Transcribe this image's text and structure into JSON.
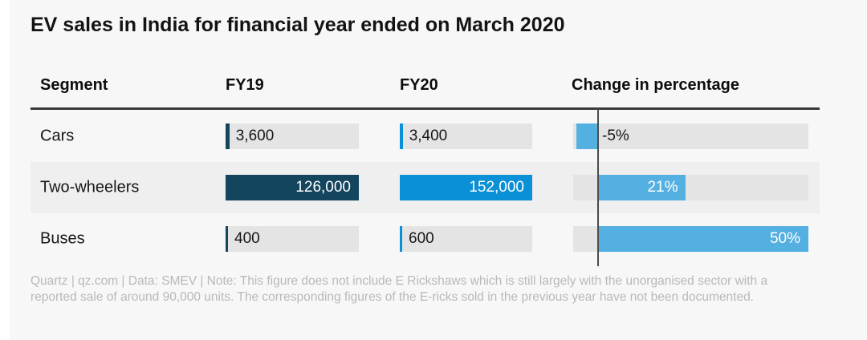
{
  "title": "EV sales in India for financial year ended on March 2020",
  "columns": {
    "segment": "Segment",
    "fy19": "FY19",
    "fy20": "FY20",
    "change": "Change in percentage"
  },
  "chart_data": {
    "type": "bar",
    "title": "EV sales in India for financial year ended on March 2020",
    "categories": [
      "Cars",
      "Two-wheelers",
      "Buses"
    ],
    "series": [
      {
        "name": "FY19",
        "values": [
          3600,
          126000,
          400
        ],
        "labels": [
          "3,600",
          "126,000",
          "400"
        ],
        "axis_max": 126000,
        "color": "#14455f"
      },
      {
        "name": "FY20",
        "values": [
          3400,
          152000,
          600
        ],
        "labels": [
          "3,400",
          "152,000",
          "600"
        ],
        "axis_max": 152000,
        "color": "#0a90d7"
      },
      {
        "name": "Change in percentage",
        "values": [
          -5,
          21,
          50
        ],
        "labels": [
          "-5%",
          "21%",
          "50%"
        ],
        "axis_range": [
          -5,
          50
        ],
        "color": "#55b0e2"
      }
    ],
    "striped_rows": [
      1
    ],
    "track_color": "#e4e4e4",
    "legend_position": "none",
    "grid": false
  },
  "footer": "Quartz | qz.com | Data: SMEV | Note: This figure does not include E Rickshaws which is still largely with the unorganised sector with a reported sale of around 90,000 units. The corresponding figures of the E-ricks sold in the previous year have not been documented."
}
